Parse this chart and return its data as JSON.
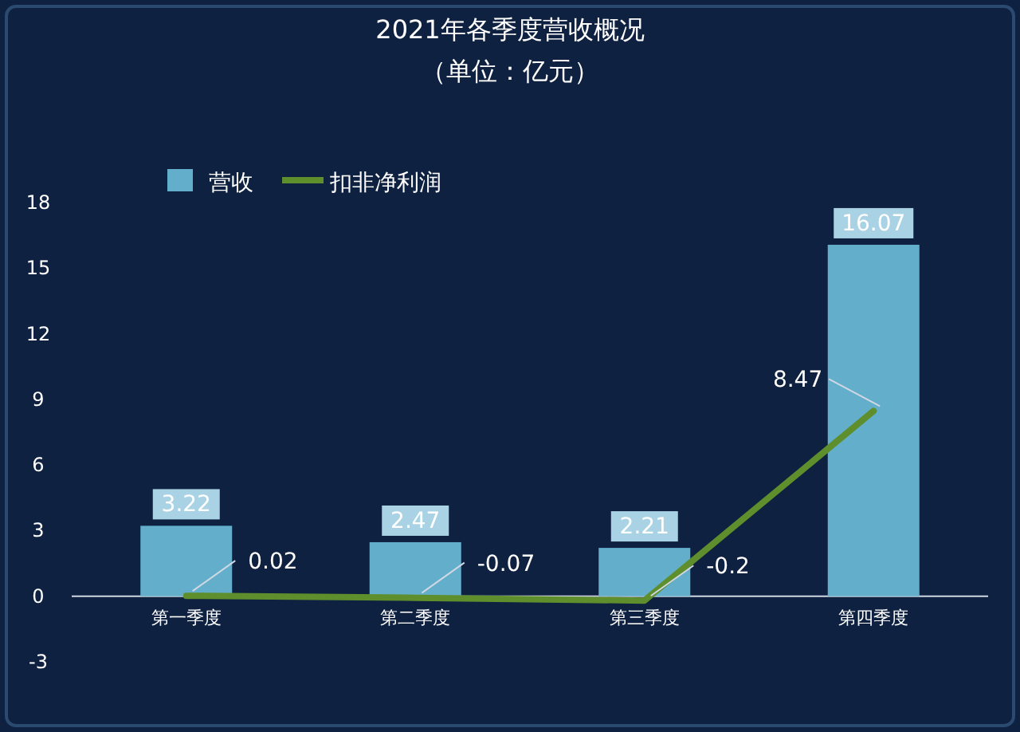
{
  "chart_data": {
    "type": "bar",
    "title": "2021年各季度营收概况",
    "subtitle": "（单位：亿元）",
    "categories": [
      "第一季度",
      "第二季度",
      "第三季度",
      "第四季度"
    ],
    "series": [
      {
        "name": "营收",
        "color": "#62aecb",
        "values": [
          3.22,
          2.47,
          2.21,
          16.07
        ]
      },
      {
        "name": "扣非净利润",
        "type": "line",
        "color": "#5f8f2c",
        "values": [
          0.02,
          -0.07,
          -0.2,
          8.47
        ]
      }
    ],
    "ylim": [
      -3,
      18
    ],
    "yticks": [
      -3,
      0,
      3,
      6,
      9,
      12,
      15,
      18
    ],
    "data_labels": true,
    "legend": "top left",
    "marker": "none"
  }
}
